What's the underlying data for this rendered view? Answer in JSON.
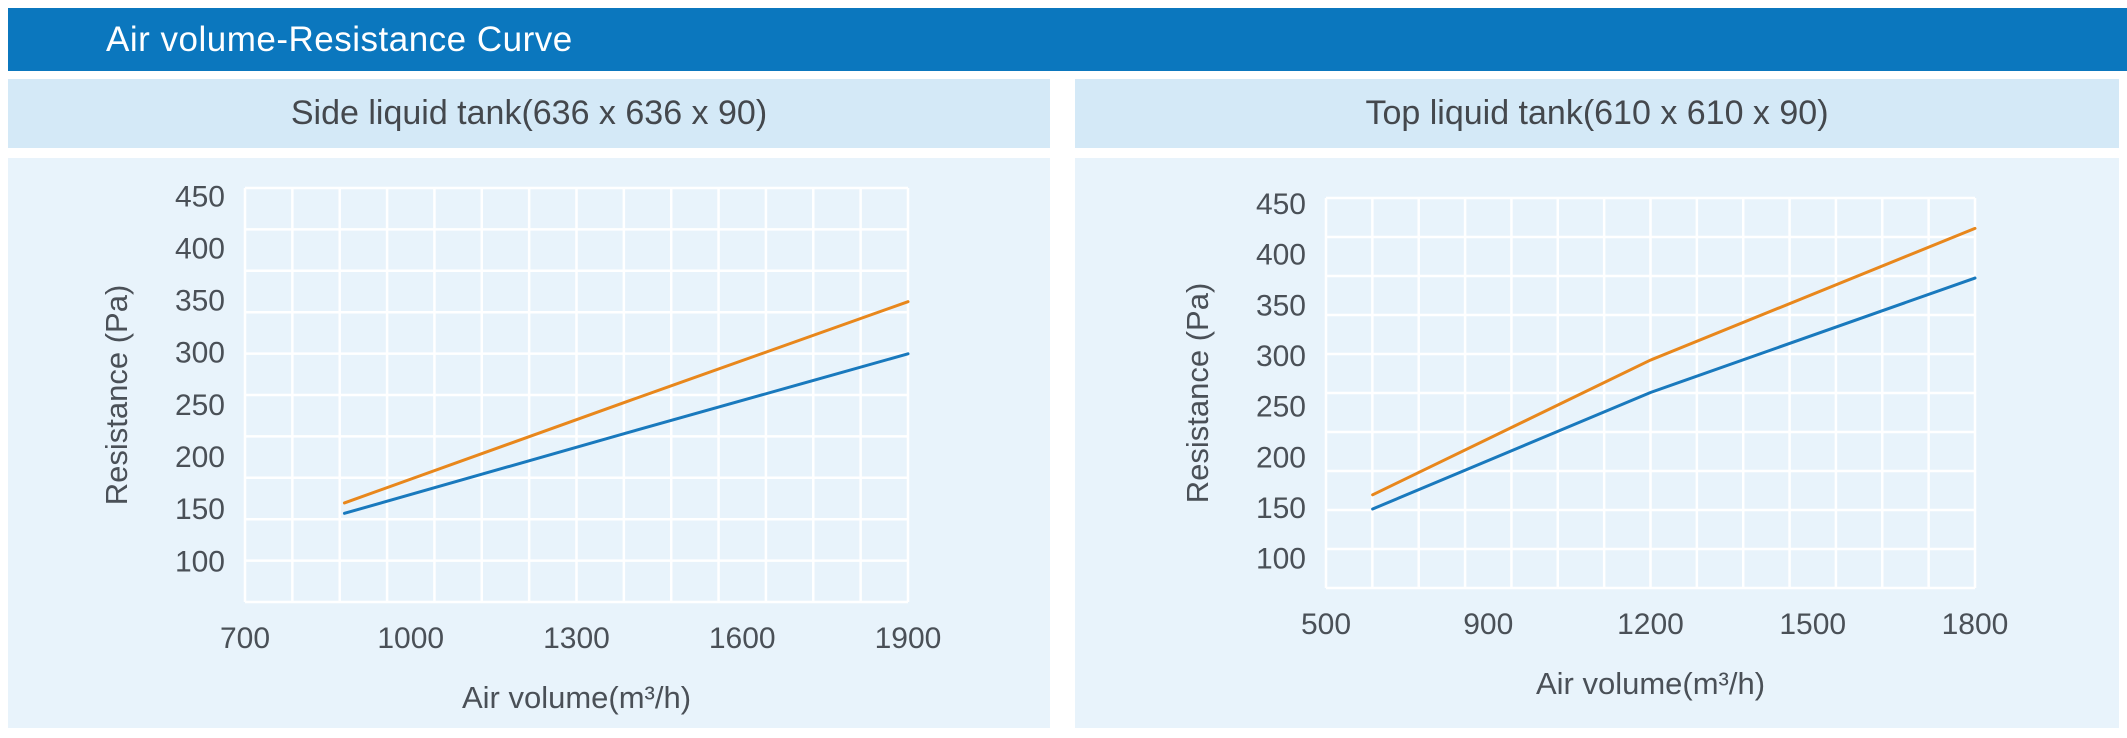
{
  "page": {
    "title_bar": {
      "label": "Air volume-Resistance Curve",
      "bg": "#0b77be",
      "text_color": "#ffffff"
    },
    "colors": {
      "subtitle_band_bg": "#d4e9f7",
      "panel_bg": "#e8f3fb",
      "grid_line": "#ffffff",
      "axis_text": "#4a5057",
      "subtitle_text": "#44484d"
    }
  },
  "chart_data": [
    {
      "subtitle": "Side liquid tank(636 x 636 x 90)",
      "type": "line",
      "xlabel": "Air volume(m³/h)",
      "ylabel": "Resistance (Pa)",
      "x_ticks": [
        700,
        1000,
        1300,
        1600,
        1900
      ],
      "y_ticks": [
        450,
        400,
        350,
        300,
        250,
        200,
        150,
        100
      ],
      "ylim": [
        60,
        457
      ],
      "grid": {
        "cols": 14,
        "rows": 10,
        "on": true
      },
      "legend": "none",
      "series": [
        {
          "name": "upper-curve",
          "color": "#E8871C",
          "points": [
            [
              880,
              155
            ],
            [
              1390,
              252
            ],
            [
              1900,
              348
            ]
          ]
        },
        {
          "name": "lower-curve",
          "color": "#1979BD",
          "points": [
            [
              880,
              145
            ],
            [
              1390,
              222
            ],
            [
              1900,
              298
            ]
          ]
        }
      ]
    },
    {
      "subtitle": "Top liquid tank(610 x 610 x 90)",
      "type": "line",
      "xlabel": "Air volume(m³/h)",
      "ylabel": "Resistance (Pa)",
      "x_ticks": [
        500,
        900,
        1200,
        1500,
        1800
      ],
      "y_ticks": [
        450,
        400,
        350,
        300,
        250,
        200,
        150,
        100
      ],
      "ylim": [
        70,
        455
      ],
      "grid": {
        "cols": 14,
        "rows": 10,
        "on": true
      },
      "legend": "none",
      "series": [
        {
          "name": "upper-curve",
          "color": "#E8871C",
          "points": [
            [
              615,
              162
            ],
            [
              1200,
              295
            ],
            [
              1800,
              425
            ]
          ]
        },
        {
          "name": "lower-curve",
          "color": "#1979BD",
          "points": [
            [
              615,
              148
            ],
            [
              1200,
              263
            ],
            [
              1800,
              376
            ]
          ]
        }
      ]
    }
  ]
}
